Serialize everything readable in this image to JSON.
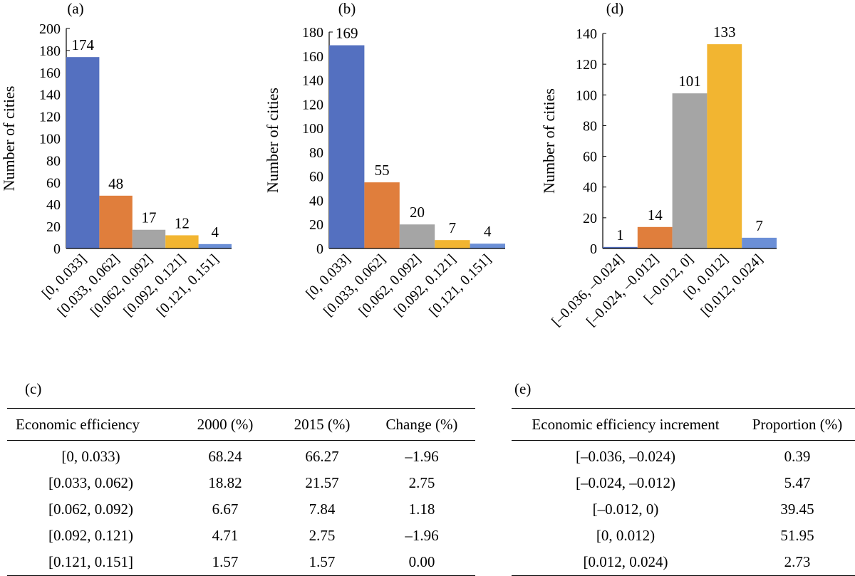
{
  "chart_data": [
    {
      "panel": "(a)",
      "type": "bar",
      "ylabel": "Number of cities",
      "ylim": [
        0,
        200
      ],
      "yticks": [
        0,
        20,
        40,
        60,
        80,
        100,
        120,
        140,
        160,
        180,
        200
      ],
      "categories": [
        "[0, 0.033]",
        "[0.033, 0.062]",
        "[0.062, 0.092]",
        "[0.092, 0.121]",
        "[0.121, 0.151]"
      ],
      "values": [
        174,
        48,
        17,
        12,
        4
      ],
      "colors": [
        "#5470C0",
        "#E07E3C",
        "#A5A5A5",
        "#F2B531",
        "#6B8FD6"
      ]
    },
    {
      "panel": "(b)",
      "type": "bar",
      "ylabel": "Number of cities",
      "ylim": [
        0,
        180
      ],
      "yticks": [
        0,
        20,
        40,
        60,
        80,
        100,
        120,
        140,
        160,
        180
      ],
      "categories": [
        "[0, 0.033]",
        "[0.033, 0.062]",
        "[0.062, 0.092]",
        "[0.092, 0.121]",
        "[0.121, 0.151]"
      ],
      "values": [
        169,
        55,
        20,
        7,
        4
      ],
      "colors": [
        "#5470C0",
        "#E07E3C",
        "#A5A5A5",
        "#F2B531",
        "#6B8FD6"
      ]
    },
    {
      "panel": "(d)",
      "type": "bar",
      "ylabel": "Number of cities",
      "ylim": [
        0,
        140
      ],
      "yticks": [
        0,
        20,
        40,
        60,
        80,
        100,
        120,
        140
      ],
      "categories": [
        "[–0.036, –0.024]",
        "[–0.024, –0.012]",
        "[–0.012, 0]",
        "[0, 0.012]",
        "[0.012, 0.024]"
      ],
      "values": [
        1,
        14,
        101,
        133,
        7
      ],
      "colors": [
        "#5470C0",
        "#E07E3C",
        "#A5A5A5",
        "#F2B531",
        "#6B8FD6"
      ]
    }
  ],
  "table_c": {
    "panel": "(c)",
    "headers": [
      "Economic efficiency",
      "2000 (%)",
      "2015 (%)",
      "Change (%)"
    ],
    "rows": [
      [
        "[0, 0.033)",
        "68.24",
        "66.27",
        "–1.96"
      ],
      [
        "[0.033, 0.062)",
        "18.82",
        "21.57",
        "2.75"
      ],
      [
        "[0.062, 0.092)",
        "6.67",
        "7.84",
        "1.18"
      ],
      [
        "[0.092, 0.121)",
        "4.71",
        "2.75",
        "–1.96"
      ],
      [
        "[0.121, 0.151]",
        "1.57",
        "1.57",
        "0.00"
      ]
    ]
  },
  "table_e": {
    "panel": "(e)",
    "headers": [
      "Economic efficiency increment",
      "Proportion (%)"
    ],
    "rows": [
      [
        "[–0.036, –0.024)",
        "0.39"
      ],
      [
        "[–0.024, –0.012)",
        "5.47"
      ],
      [
        "[–0.012, 0)",
        "39.45"
      ],
      [
        "[0, 0.012)",
        "51.95"
      ],
      [
        "[0.012, 0.024)",
        "2.73"
      ]
    ]
  }
}
